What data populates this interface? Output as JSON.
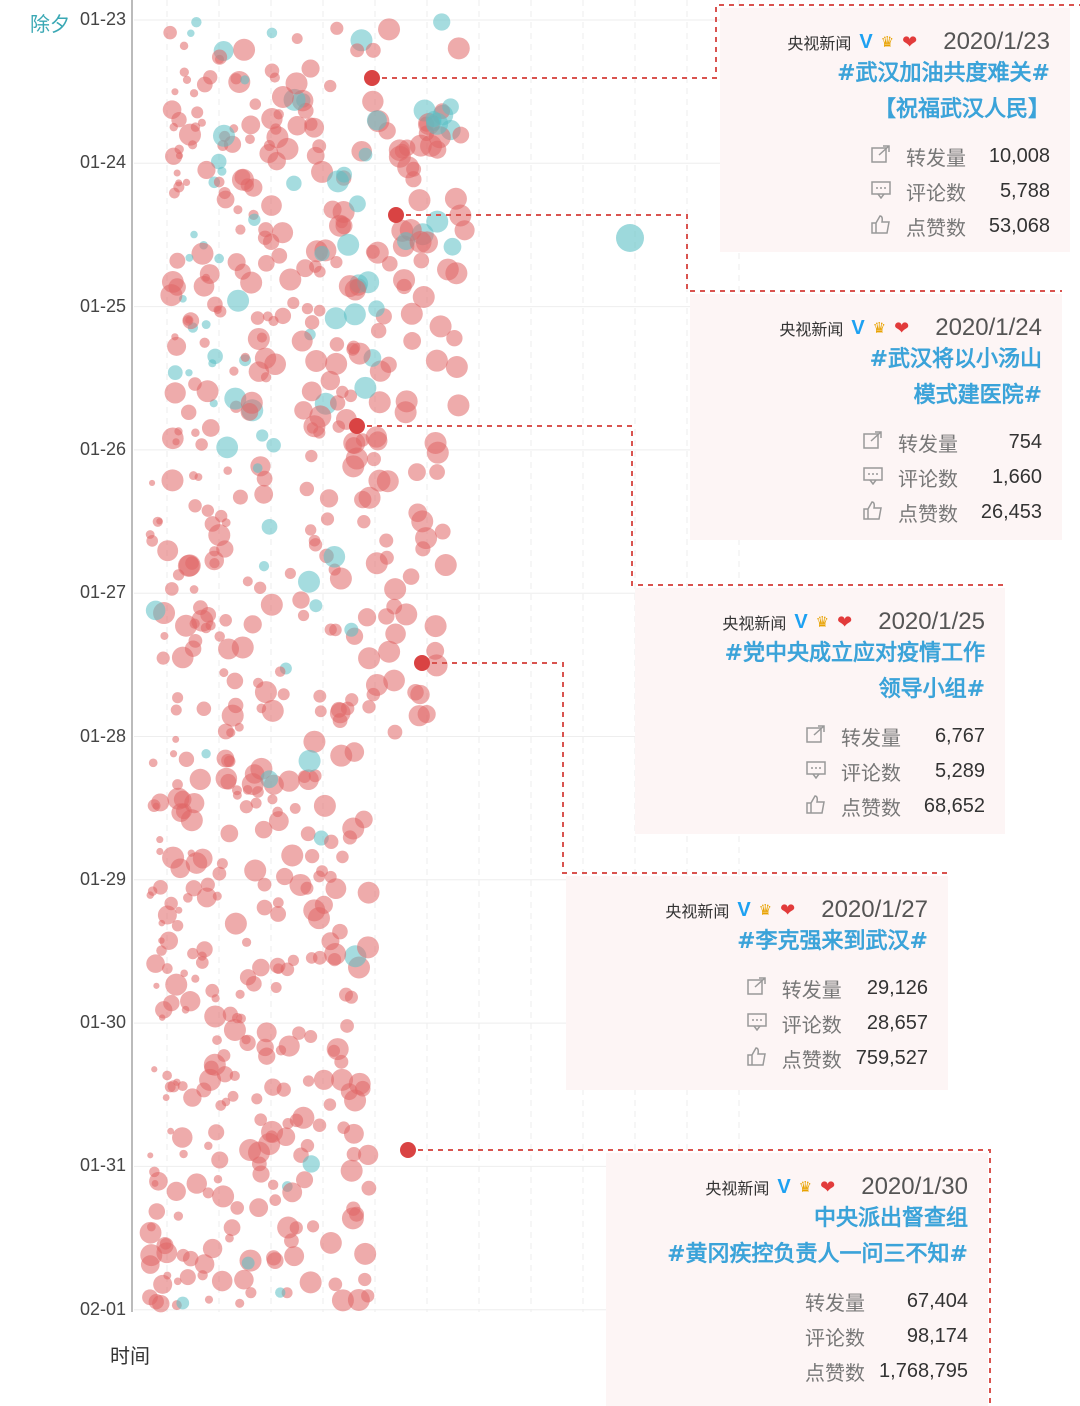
{
  "chart_data": {
    "type": "scatter",
    "title": "",
    "xlabel": "",
    "ylabel": "时间",
    "y_axis_annotation": "除夕",
    "y_ticks": [
      "01-23",
      "01-24",
      "01-25",
      "01-26",
      "01-27",
      "01-28",
      "01-29",
      "01-30",
      "01-31",
      "02-01"
    ],
    "grid": true,
    "colors": {
      "red": "#e06666",
      "teal": "#5bbfc4",
      "highlight": "#d94343",
      "connector": "#d9534f"
    },
    "highlighted_posts": [
      {
        "account": "央视新闻",
        "date": "2020/1/23",
        "title_lines": [
          "#武汉加油共度难关#",
          "【祝福武汉人民】"
        ],
        "reposts": "10,008",
        "comments": "5,788",
        "likes": "53,068"
      },
      {
        "account": "央视新闻",
        "date": "2020/1/24",
        "title_lines": [
          "#武汉将以小汤山",
          "模式建医院#"
        ],
        "reposts": "754",
        "comments": "1,660",
        "likes": "26,453"
      },
      {
        "account": "央视新闻",
        "date": "2020/1/25",
        "title_lines": [
          "#党中央成立应对疫情工作",
          "领导小组#"
        ],
        "reposts": "6,767",
        "comments": "5,289",
        "likes": "68,652"
      },
      {
        "account": "央视新闻",
        "date": "2020/1/27",
        "title_lines": [
          "#李克强来到武汉#"
        ],
        "reposts": "29,126",
        "comments": "28,657",
        "likes": "759,527"
      },
      {
        "account": "央视新闻",
        "date": "2020/1/30",
        "title_lines": [
          "中央派出督查组",
          "#黄冈疾控负责人一问三不知#"
        ],
        "reposts": "67,404",
        "comments": "98,174",
        "likes": "1,768,795"
      }
    ]
  },
  "labels": {
    "reposts": "转发量",
    "comments": "评论数",
    "likes": "点赞数",
    "verified": "V"
  }
}
